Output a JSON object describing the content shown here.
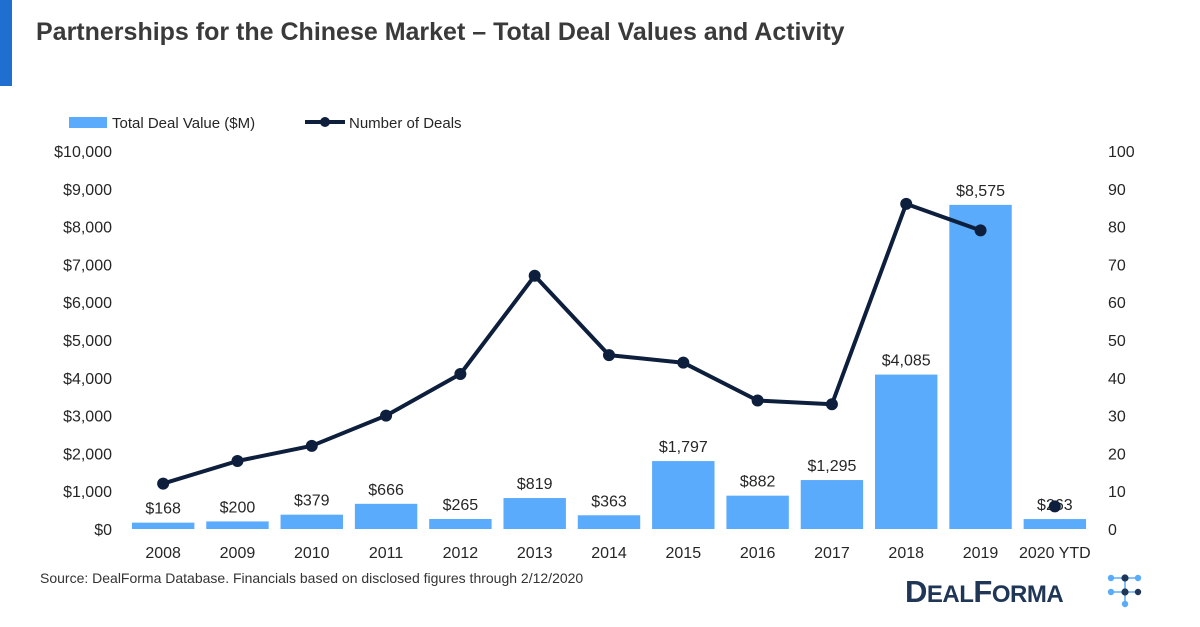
{
  "title": "Partnerships for the Chinese Market – Total Deal Values and Activity",
  "source_note": "Source: DealForma Database. Financials based on disclosed figures through 2/12/2020",
  "logo": {
    "part1": "D",
    "part2": "EAL",
    "part3": "F",
    "part4": "ORMA"
  },
  "colors": {
    "bar": "#5aabfb",
    "line": "#0d1f3c",
    "accent": "#1f6fd1"
  },
  "chart_data": {
    "type": "bar+line",
    "categories": [
      "2008",
      "2009",
      "2010",
      "2011",
      "2012",
      "2013",
      "2014",
      "2015",
      "2016",
      "2017",
      "2018",
      "2019",
      "2020 YTD"
    ],
    "series": [
      {
        "name": "Total Deal Value ($M)",
        "type": "bar",
        "axis": "left",
        "values": [
          168,
          200,
          379,
          666,
          265,
          819,
          363,
          1797,
          882,
          1295,
          4085,
          8575,
          263
        ],
        "labels": [
          "$168",
          "$200",
          "$379",
          "$666",
          "$265",
          "$819",
          "$363",
          "$1,797",
          "$882",
          "$1,295",
          "$4,085",
          "$8,575",
          "$263"
        ]
      },
      {
        "name": "Number of Deals",
        "type": "line",
        "axis": "right",
        "values": [
          12,
          18,
          22,
          30,
          41,
          67,
          46,
          44,
          34,
          33,
          86,
          79,
          6
        ],
        "connected_until_index": 11
      }
    ],
    "y_left": {
      "min": 0,
      "max": 10000,
      "ticks": [
        "$0",
        "$1,000",
        "$2,000",
        "$3,000",
        "$4,000",
        "$5,000",
        "$6,000",
        "$7,000",
        "$8,000",
        "$9,000",
        "$10,000"
      ]
    },
    "y_right": {
      "min": 0,
      "max": 100,
      "ticks": [
        "0",
        "10",
        "20",
        "30",
        "40",
        "50",
        "60",
        "70",
        "80",
        "90",
        "100"
      ]
    },
    "legend_position": "top-left",
    "grid": false
  }
}
